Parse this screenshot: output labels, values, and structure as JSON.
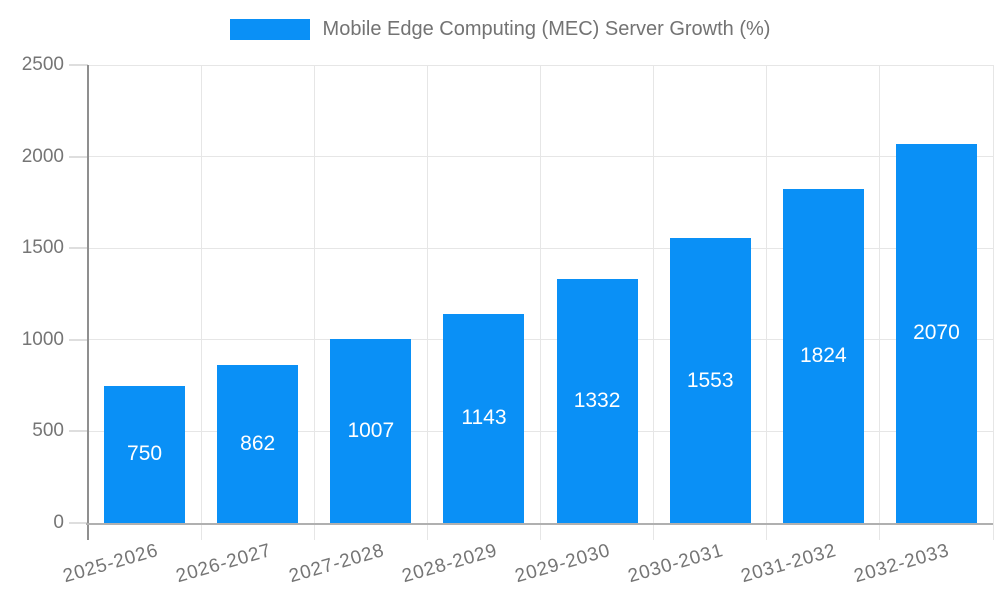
{
  "legend": {
    "label": "Mobile Edge Computing (MEC) Server Growth (%)"
  },
  "chart_data": {
    "type": "bar",
    "title": "Mobile Edge Computing (MEC) Server Growth (%)",
    "categories": [
      "2025-2026",
      "2026-2027",
      "2027-2028",
      "2028-2029",
      "2029-2030",
      "2030-2031",
      "2031-2032",
      "2032-2033"
    ],
    "values": [
      750,
      862,
      1007,
      1143,
      1332,
      1553,
      1824,
      2070
    ],
    "value_labels": [
      "750",
      "862",
      "1007",
      "1143",
      "1332",
      "1553",
      "1824",
      "2070"
    ],
    "xlabel": "",
    "ylabel": "",
    "ylim": [
      0,
      2500
    ],
    "yticks": [
      0,
      500,
      1000,
      1500,
      2000,
      2500
    ],
    "grid": true,
    "legend_position": "top-center",
    "colors": {
      "bar": "#0a90f6",
      "value_label": "#ffffff",
      "axis_text": "#757575",
      "legend_text": "#737373",
      "gridline": "#e6e6e6",
      "y_axis_line": "#8f8f8f",
      "x_axis_line": "#b0b0b0",
      "background": "#ffffff"
    }
  }
}
